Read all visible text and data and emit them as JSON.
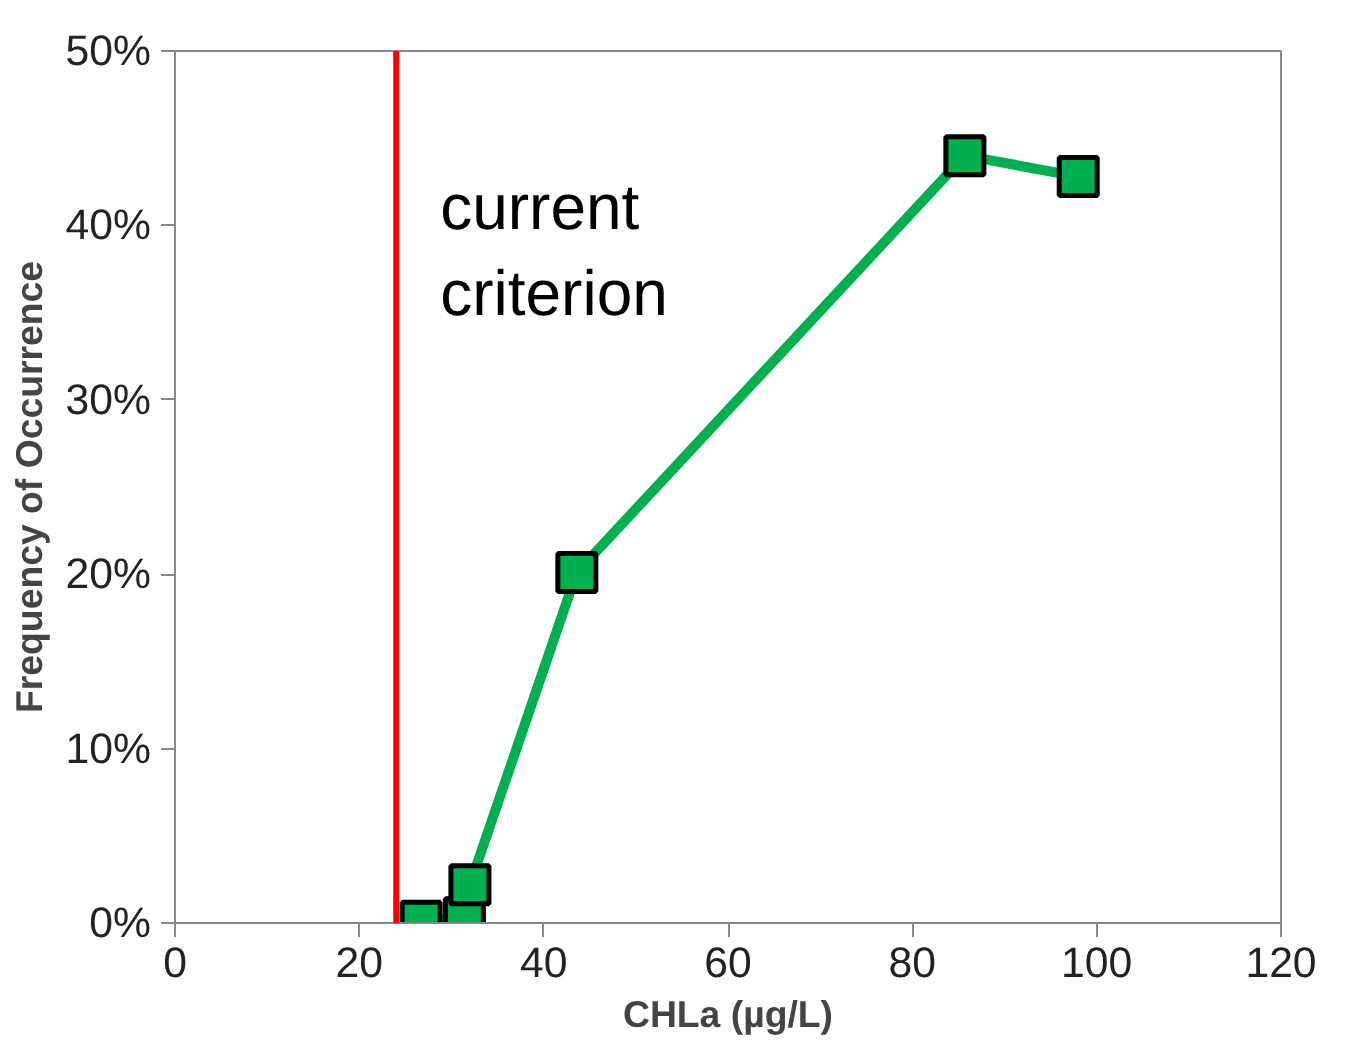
{
  "chart_data": {
    "type": "line",
    "xlabel": "CHLa (µg/L)",
    "ylabel": "Frequency of Occurrence",
    "x": [
      26.7,
      31.4,
      32.0,
      43.6,
      85.7,
      98.0
    ],
    "series": [
      {
        "color": "#00b050",
        "values": [
          0.1,
          0.3,
          2.2,
          20.1,
          44.0,
          42.8
        ]
      }
    ],
    "marker": "square",
    "line_style": "solid",
    "grid": false,
    "xlim": [
      0,
      120
    ],
    "xticks": [
      0,
      20,
      40,
      60,
      80,
      100,
      120
    ],
    "ylim": [
      0,
      50
    ],
    "yticks": [
      {
        "value": 0,
        "label": "0%"
      },
      {
        "value": 10,
        "label": "10%"
      },
      {
        "value": 20,
        "label": "20%"
      },
      {
        "value": 30,
        "label": "30%"
      },
      {
        "value": 40,
        "label": "40%"
      },
      {
        "value": 50,
        "label": "50%"
      }
    ],
    "ref_lines": [
      {
        "axis": "x",
        "value": 24.0,
        "label": "current\ncriterion",
        "color": "#ff0000",
        "line_style": "solid"
      }
    ]
  }
}
